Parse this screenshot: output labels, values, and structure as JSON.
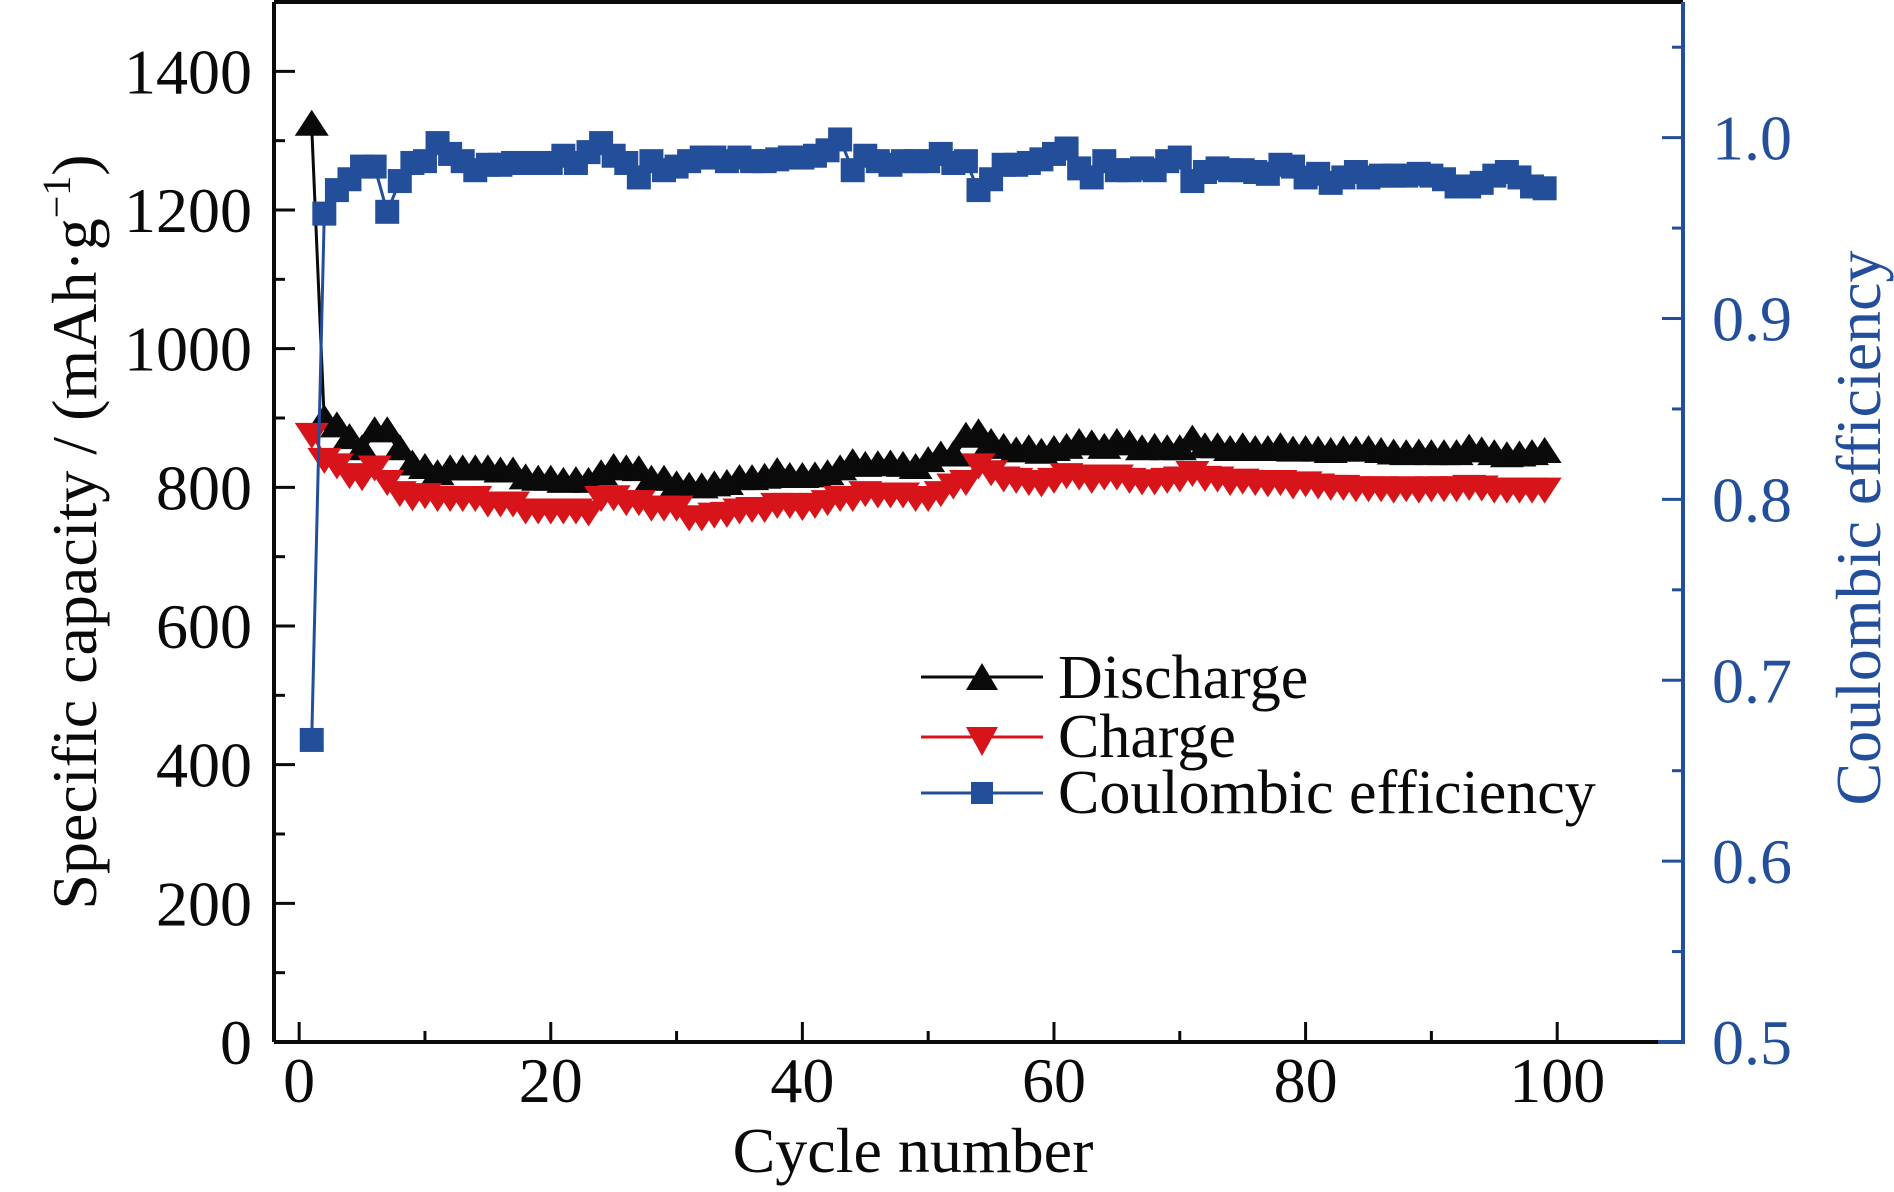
{
  "chart_data": {
    "type": "line",
    "title": "",
    "xlabel": "Cycle number",
    "ylabel": "Specific capacity / (mAh·g",
    "ylabel_sup": "−1",
    "ylabel_close": ")",
    "y2label": "Coulombic efficiency",
    "xlim": [
      -2,
      110
    ],
    "ylim": [
      0,
      1500
    ],
    "y2lim": [
      0.5,
      1.075
    ],
    "xticks": [
      0,
      20,
      40,
      60,
      80,
      100
    ],
    "xtick_labels": [
      "0",
      "20",
      "40",
      "60",
      "80",
      "100"
    ],
    "xminor_ticks": [
      10,
      30,
      50,
      70,
      90
    ],
    "yticks": [
      0,
      200,
      400,
      600,
      800,
      1000,
      1200,
      1400
    ],
    "ytick_labels": [
      "0",
      "200",
      "400",
      "600",
      "800",
      "1000",
      "1200",
      "1400"
    ],
    "yminor_ticks": [
      100,
      300,
      500,
      700,
      900,
      1100,
      1300
    ],
    "y2ticks": [
      0.5,
      0.6,
      0.7,
      0.8,
      0.9,
      1.0
    ],
    "y2tick_labels": [
      "0.5",
      "0.6",
      "0.7",
      "0.8",
      "0.9",
      "1.0"
    ],
    "y2minor_ticks": [
      0.55,
      0.65,
      0.75,
      0.85,
      0.95,
      1.05
    ],
    "grid": false,
    "legend_position": "center-right",
    "x": [
      1,
      2,
      3,
      4,
      5,
      6,
      7,
      8,
      9,
      10,
      11,
      12,
      13,
      14,
      15,
      16,
      17,
      18,
      19,
      20,
      21,
      22,
      23,
      24,
      25,
      26,
      27,
      28,
      29,
      30,
      31,
      32,
      33,
      34,
      35,
      36,
      37,
      38,
      39,
      40,
      41,
      42,
      43,
      44,
      45,
      46,
      47,
      48,
      49,
      50,
      51,
      52,
      53,
      54,
      55,
      56,
      57,
      58,
      59,
      60,
      61,
      62,
      63,
      64,
      65,
      66,
      67,
      68,
      69,
      70,
      71,
      72,
      73,
      74,
      75,
      76,
      77,
      78,
      79,
      80,
      81,
      82,
      83,
      84,
      85,
      86,
      87,
      88,
      89,
      90,
      91,
      92,
      93,
      94,
      95,
      96,
      97,
      98,
      99
    ],
    "series": [
      {
        "name": "Discharge",
        "axis": "left",
        "color": "#0a0a0a",
        "marker": "triangle-up",
        "values": [
          1320,
          895,
          885,
          868,
          852,
          878,
          878,
          852,
          830,
          825,
          816,
          823,
          823,
          823,
          823,
          820,
          820,
          810,
          808,
          808,
          805,
          806,
          805,
          816,
          825,
          823,
          822,
          808,
          808,
          800,
          798,
          797,
          800,
          802,
          809,
          809,
          811,
          819,
          812,
          812,
          813,
          816,
          823,
          832,
          828,
          829,
          830,
          828,
          825,
          835,
          843,
          843,
          870,
          875,
          861,
          854,
          849,
          852,
          847,
          851,
          854,
          861,
          859,
          854,
          861,
          859,
          852,
          854,
          852,
          852,
          866,
          855,
          855,
          851,
          855,
          851,
          851,
          855,
          850,
          851,
          850,
          848,
          850,
          850,
          851,
          848,
          846,
          845,
          846,
          845,
          845,
          845,
          853,
          849,
          845,
          842,
          843,
          845,
          848
        ]
      },
      {
        "name": "Charge",
        "axis": "left",
        "color": "#d7141a",
        "marker": "triangle-down",
        "values": [
          880,
          844,
          836,
          822,
          819,
          833,
          812,
          796,
          790,
          793,
          789,
          789,
          789,
          789,
          781,
          781,
          781,
          771,
          771,
          771,
          771,
          771,
          768,
          789,
          790,
          783,
          783,
          775,
          775,
          775,
          761,
          761,
          765,
          766,
          771,
          773,
          773,
          779,
          779,
          776,
          779,
          783,
          789,
          789,
          796,
          794,
          794,
          794,
          789,
          789,
          796,
          807,
          812,
          836,
          826,
          817,
          815,
          812,
          810,
          815,
          822,
          820,
          815,
          820,
          820,
          815,
          813,
          813,
          815,
          817,
          825,
          818,
          817,
          812,
          814,
          812,
          810,
          812,
          807,
          810,
          807,
          805,
          805,
          803,
          803,
          803,
          801,
          803,
          801,
          803,
          803,
          803,
          805,
          804,
          801,
          801,
          801,
          801,
          801
        ]
      },
      {
        "name": "Coulombic efficiency",
        "axis": "right",
        "color": "#234e9a",
        "marker": "square",
        "values": [
          0.667,
          0.958,
          0.971,
          0.977,
          0.984,
          0.984,
          0.959,
          0.976,
          0.986,
          0.987,
          0.997,
          0.991,
          0.987,
          0.982,
          0.985,
          0.985,
          0.986,
          0.986,
          0.986,
          0.986,
          0.99,
          0.986,
          0.992,
          0.997,
          0.99,
          0.986,
          0.978,
          0.987,
          0.982,
          0.984,
          0.987,
          0.989,
          0.989,
          0.987,
          0.989,
          0.987,
          0.987,
          0.988,
          0.989,
          0.989,
          0.99,
          0.993,
          0.999,
          0.982,
          0.99,
          0.987,
          0.985,
          0.987,
          0.987,
          0.987,
          0.991,
          0.986,
          0.987,
          0.971,
          0.977,
          0.985,
          0.985,
          0.986,
          0.988,
          0.991,
          0.994,
          0.983,
          0.978,
          0.987,
          0.982,
          0.982,
          0.983,
          0.982,
          0.987,
          0.989,
          0.976,
          0.981,
          0.983,
          0.982,
          0.982,
          0.981,
          0.98,
          0.985,
          0.984,
          0.978,
          0.98,
          0.975,
          0.978,
          0.981,
          0.978,
          0.979,
          0.979,
          0.979,
          0.98,
          0.979,
          0.977,
          0.973,
          0.973,
          0.975,
          0.979,
          0.981,
          0.978,
          0.973,
          0.972
        ]
      }
    ]
  },
  "colors": {
    "axis_left": "#0a0a0a",
    "axis_right": "#234e9a"
  }
}
